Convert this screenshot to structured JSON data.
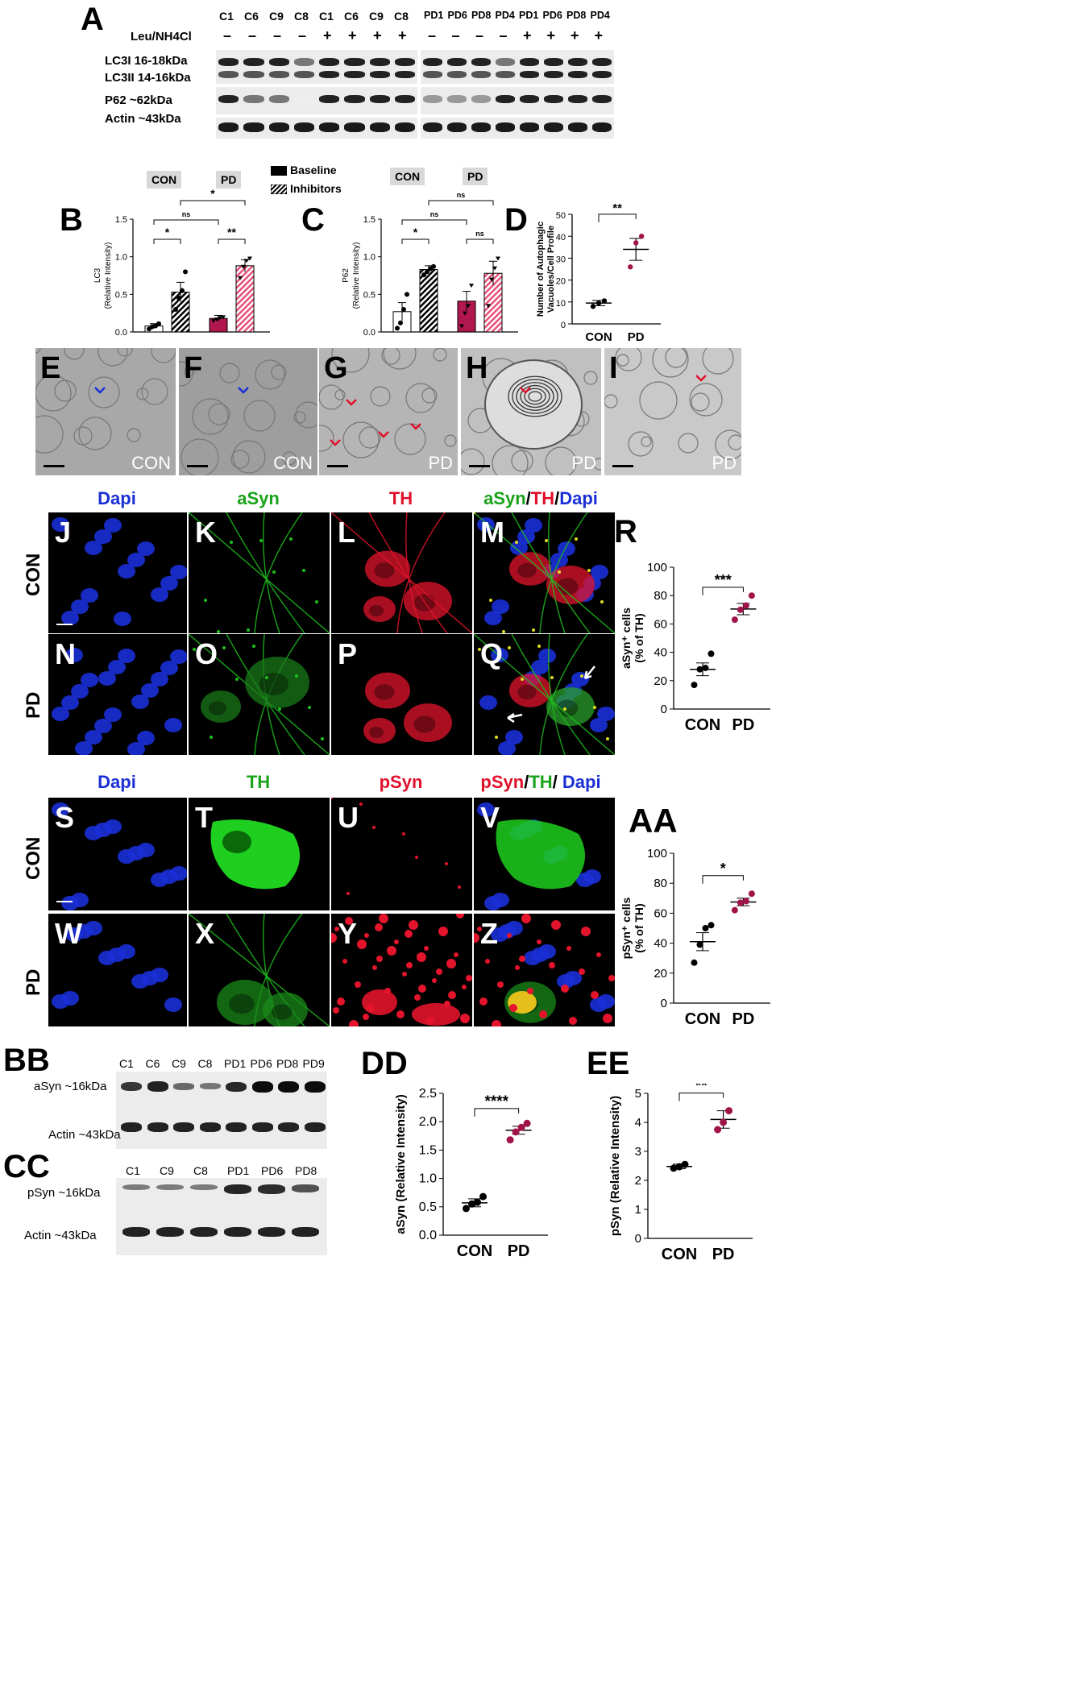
{
  "panels": {
    "A": "A",
    "B": "B",
    "C": "C",
    "D": "D",
    "E": "E",
    "F": "F",
    "G": "G",
    "H": "H",
    "I": "I",
    "J": "J",
    "K": "K",
    "L": "L",
    "M": "M",
    "N": "N",
    "O": "O",
    "P": "P",
    "Q": "Q",
    "R": "R",
    "S": "S",
    "T": "T",
    "U": "U",
    "V": "V",
    "W": "W",
    "X": "X",
    "Y": "Y",
    "Z": "Z",
    "AA": "AA",
    "BB": "BB",
    "CC": "CC",
    "DD": "DD",
    "EE": "EE"
  },
  "blotA": {
    "treatment_label": "Leu/NH4Cl",
    "lanes_left": [
      "C1",
      "C6",
      "C9",
      "C8",
      "C1",
      "C6",
      "C9",
      "C8"
    ],
    "lanes_right": [
      "PD1",
      "PD6",
      "PD8",
      "PD4",
      "PD1",
      "PD6",
      "PD8",
      "PD4"
    ],
    "treat_left": [
      "–",
      "–",
      "–",
      "–",
      "+",
      "+",
      "+",
      "+"
    ],
    "treat_right": [
      "–",
      "–",
      "–",
      "–",
      "+",
      "+",
      "+",
      "+"
    ],
    "row_labels": [
      "LC3I 16-18kDa",
      "LC3II 14-16kDa",
      "P62 ~62kDa",
      "Actin ~43kDa"
    ]
  },
  "legend": {
    "baseline": "Baseline",
    "inhibitors": "Inhibitors",
    "con": "CON",
    "pd": "PD"
  },
  "em_captions": [
    "CON",
    "CON",
    "PD",
    "PD",
    "PD"
  ],
  "fluor1": {
    "col_headers": [
      "Dapi",
      "aSyn",
      "TH"
    ],
    "merge_header": {
      "a": "aSyn",
      "b": "/",
      "c": "TH",
      "d": "/",
      "e": "Dapi"
    },
    "rows": [
      "CON",
      "PD"
    ]
  },
  "fluor2": {
    "col_headers": [
      "Dapi",
      "TH",
      "pSyn"
    ],
    "merge_header": {
      "a": "pSyn",
      "b": "/",
      "c": "TH",
      "d": "/ ",
      "e": "Dapi"
    },
    "rows": [
      "CON",
      "PD"
    ]
  },
  "blotBB": {
    "lanes": [
      "C1",
      "C6",
      "C9",
      "C8",
      "PD1",
      "PD6",
      "PD8",
      "PD9"
    ],
    "rows": [
      "aSyn ~16kDa",
      "Actin ~43kDa"
    ]
  },
  "blotCC": {
    "lanes": [
      "C1",
      "C9",
      "C8",
      "PD1",
      "PD6",
      "PD8"
    ],
    "rows": [
      "pSyn ~16kDa",
      "Actin ~43kDa"
    ]
  },
  "colors": {
    "pd": "#a0144a",
    "pd_bar": "#b0174f",
    "pd_hatch": "#e8507a",
    "dapi": "#1a2fd6",
    "green": "#1aa31a",
    "red": "#e0102a"
  },
  "chart_data": [
    {
      "id": "B",
      "type": "bar",
      "ylabel": "LC3\n(Relative Intensity)",
      "ylim": [
        0,
        1.5
      ],
      "yticks": [
        "0.0",
        "0.5",
        "1.0",
        "1.5"
      ],
      "categories": [
        "CON Baseline",
        "CON Inhibitors",
        "PD Baseline",
        "PD Inhibitors"
      ],
      "values": [
        0.08,
        0.53,
        0.18,
        0.88
      ],
      "errors": [
        0.03,
        0.13,
        0.04,
        0.08
      ],
      "points": [
        [
          0.04,
          0.07,
          0.08,
          0.11
        ],
        [
          0.3,
          0.45,
          0.55,
          0.8
        ],
        [
          0.15,
          0.17,
          0.19,
          0.2
        ],
        [
          0.72,
          0.87,
          0.95,
          0.98
        ]
      ],
      "annotations": [
        "*",
        "**",
        "ns",
        "*"
      ]
    },
    {
      "id": "C",
      "type": "bar",
      "ylabel": "P62\n(Relative Intensity)",
      "ylim": [
        0,
        1.5
      ],
      "yticks": [
        "0.0",
        "0.5",
        "1.0",
        "1.5"
      ],
      "categories": [
        "CON Baseline",
        "CON Inhibitors",
        "PD Baseline",
        "PD Inhibitors"
      ],
      "values": [
        0.27,
        0.83,
        0.41,
        0.78
      ],
      "errors": [
        0.12,
        0.05,
        0.13,
        0.16
      ],
      "points": [
        [
          0.05,
          0.12,
          0.3,
          0.5
        ],
        [
          0.76,
          0.8,
          0.84,
          0.87
        ],
        [
          0.08,
          0.25,
          0.35,
          0.62
        ],
        [
          0.35,
          0.7,
          0.85,
          0.98
        ]
      ],
      "annotations": [
        "*",
        "ns",
        "ns",
        "ns"
      ]
    },
    {
      "id": "D",
      "type": "scatter",
      "ylabel": "Number of Autophagic\nVacuoles/Cell Profile",
      "ylim": [
        0,
        50
      ],
      "yticks": [
        "0",
        "10",
        "20",
        "30",
        "40",
        "50"
      ],
      "categories": [
        "CON",
        "PD"
      ],
      "mean": [
        9.5,
        34
      ],
      "errors": [
        1.2,
        5
      ],
      "points": [
        [
          8,
          9.5,
          10.5
        ],
        [
          26,
          37,
          40
        ]
      ],
      "annotation": "**"
    },
    {
      "id": "R",
      "type": "scatter",
      "ylabel": "aSyn⁺ cells\n(% of TH)",
      "ylim": [
        0,
        100
      ],
      "yticks": [
        "0",
        "20",
        "40",
        "60",
        "80",
        "100"
      ],
      "categories": [
        "CON",
        "PD"
      ],
      "mean": [
        28,
        70.5
      ],
      "errors": [
        4.5,
        4
      ],
      "points": [
        [
          17,
          28,
          29,
          39
        ],
        [
          63,
          70,
          73,
          80
        ]
      ],
      "annotation": "***"
    },
    {
      "id": "AA",
      "type": "scatter",
      "ylabel": "pSyn⁺ cells\n(% of TH)",
      "ylim": [
        0,
        100
      ],
      "yticks": [
        "0",
        "20",
        "40",
        "60",
        "80",
        "100"
      ],
      "categories": [
        "CON",
        "PD"
      ],
      "mean": [
        41,
        67.5
      ],
      "errors": [
        6,
        2.5
      ],
      "points": [
        [
          27,
          39,
          50,
          52
        ],
        [
          62,
          67,
          68,
          73
        ]
      ],
      "annotation": "*"
    },
    {
      "id": "DD",
      "type": "scatter",
      "ylabel": "aSyn (Relative Intensity)",
      "ylim": [
        0,
        2.5
      ],
      "yticks": [
        "0.0",
        "0.5",
        "1.0",
        "1.5",
        "2.0",
        "2.5"
      ],
      "categories": [
        "CON",
        "PD"
      ],
      "mean": [
        0.57,
        1.85
      ],
      "errors": [
        0.07,
        0.07
      ],
      "points": [
        [
          0.47,
          0.55,
          0.58,
          0.68
        ],
        [
          1.68,
          1.82,
          1.9,
          1.97
        ]
      ],
      "annotation": "****"
    },
    {
      "id": "EE",
      "type": "scatter",
      "ylabel": "pSyn (Relative Intensity)",
      "ylim": [
        0,
        5
      ],
      "yticks": [
        "0",
        "1",
        "2",
        "3",
        "4",
        "5"
      ],
      "categories": [
        "CON",
        "PD"
      ],
      "mean": [
        2.48,
        4.1
      ],
      "errors": [
        0.08,
        0.3
      ],
      "points": [
        [
          2.42,
          2.47,
          2.55
        ],
        [
          3.75,
          4.0,
          4.4
        ]
      ],
      "annotation": "**"
    }
  ]
}
